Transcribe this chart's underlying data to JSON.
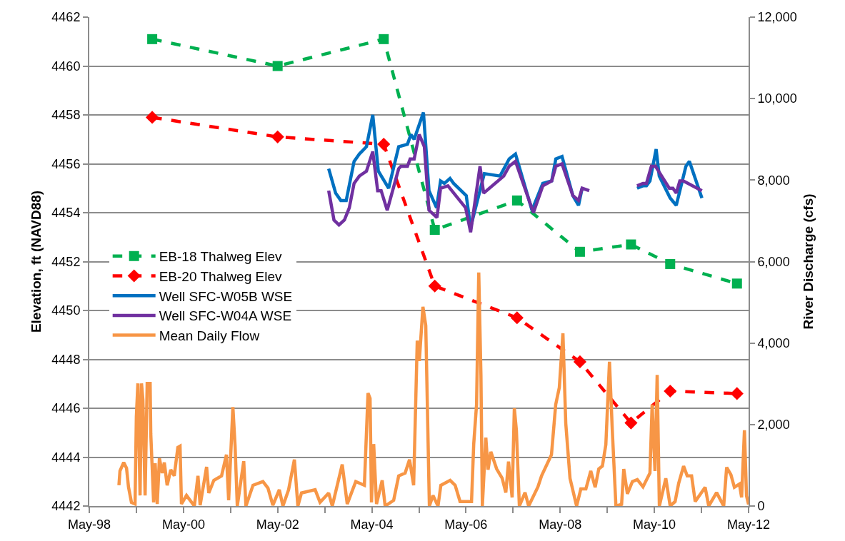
{
  "chart_data": {
    "type": "line",
    "xlabel": null,
    "ylabel": "Elevation, ft (NAVD88)",
    "y2label": "River Discharge (cfs)",
    "xlim": [
      "1998-05-01",
      "2012-05-01"
    ],
    "xticks": [
      {
        "value": "1998-05-01",
        "label": "May-98"
      },
      {
        "value": "1999-05-01",
        "label": null
      },
      {
        "value": "2000-05-01",
        "label": "May-00"
      },
      {
        "value": "2001-05-01",
        "label": null
      },
      {
        "value": "2002-05-01",
        "label": "May-02"
      },
      {
        "value": "2003-05-01",
        "label": null
      },
      {
        "value": "2004-05-01",
        "label": "May-04"
      },
      {
        "value": "2005-05-01",
        "label": null
      },
      {
        "value": "2006-05-01",
        "label": "May-06"
      },
      {
        "value": "2007-05-01",
        "label": null
      },
      {
        "value": "2008-05-01",
        "label": "May-08"
      },
      {
        "value": "2009-05-01",
        "label": null
      },
      {
        "value": "2010-05-01",
        "label": "May-10"
      },
      {
        "value": "2011-05-01",
        "label": null
      },
      {
        "value": "2012-05-01",
        "label": "May-12"
      }
    ],
    "ylim": [
      4442,
      4462
    ],
    "yticks": [
      4442,
      4444,
      4446,
      4448,
      4450,
      4452,
      4454,
      4456,
      4458,
      4460,
      4462
    ],
    "y2lim": [
      0,
      12000
    ],
    "y2ticks": [
      0,
      {
        "value": 2000,
        "label": "2,000"
      },
      {
        "value": 4000,
        "label": "4,000"
      },
      {
        "value": 6000,
        "label": "6,000"
      },
      {
        "value": 8000,
        "label": "8,000"
      },
      {
        "value": 10000,
        "label": "10,000"
      },
      {
        "value": 12000,
        "label": "12,000"
      }
    ],
    "grid": "y",
    "legend": "left",
    "series": [
      {
        "name": "EB-18 Thalweg Elev",
        "type": "line",
        "color": "#00b050",
        "marker": "square",
        "line_style": "dashed",
        "x": [
          "1999-09-01",
          "2002-05-01",
          "2004-08-01",
          "2005-09-01",
          "2007-06-01",
          "2008-10-01",
          "2009-11-01",
          "2010-09-01",
          "2012-02-01"
        ],
        "values": [
          4461.1,
          4460.0,
          4461.1,
          4453.3,
          4454.5,
          4452.4,
          4452.7,
          4451.9,
          4451.1
        ]
      },
      {
        "name": "EB-20 Thalweg Elev",
        "type": "line",
        "color": "#ff0000",
        "marker": "diamond",
        "line_style": "dashed",
        "x": [
          "1999-09-01",
          "2002-05-01",
          "2004-08-01",
          "2005-09-01",
          "2007-06-01",
          "2008-10-01",
          "2009-11-01",
          "2010-09-01",
          "2012-02-01"
        ],
        "values": [
          4457.9,
          4457.1,
          4456.8,
          4451.0,
          4449.7,
          4447.9,
          4445.4,
          4446.7,
          4446.6
        ]
      },
      {
        "name": "Well SFC-W05B WSE",
        "type": "line",
        "color": "#0070c0",
        "marker": "none",
        "line_style": "solid",
        "x": [
          "2003-06-01",
          "2003-07-25",
          "2003-09-03",
          "2003-10-15",
          "2003-12-15",
          "2004-01-25",
          "2004-03-20",
          "2004-05-08",
          "2004-06-20",
          "2004-09-08",
          "2004-11-25",
          "2005-02-01",
          "2005-02-28",
          "2005-03-25",
          "2005-06-05",
          "2005-07-18",
          "2005-09-15",
          "2005-10-16",
          "2005-11-14",
          "2005-12-28",
          "2006-01-25",
          "2006-05-03",
          "2006-06-06",
          "2006-09-20",
          "2007-01-20",
          "2007-04-01",
          "2007-05-20",
          "2007-09-25",
          "2007-12-18",
          "2008-02-25",
          "2008-03-28",
          "2008-05-15",
          "2008-08-07",
          "2008-09-20",
          "2008-10-18",
          "2009-06-01",
          "2009-12-18",
          "2010-02-02",
          "2010-03-01",
          "2010-03-28",
          "2010-05-15",
          "2010-06-08",
          "2010-09-01",
          "2010-10-18",
          "2011-01-01",
          "2011-01-28",
          "2011-05-05"
        ],
        "values": [
          4455.8,
          4454.8,
          4454.5,
          4454.5,
          4456.1,
          4456.4,
          4456.7,
          4458.0,
          4455.7,
          4455.0,
          4456.7,
          4456.8,
          4457.2,
          4457.0,
          4458.1,
          4454.9,
          4454.2,
          4455.3,
          4455.2,
          4455.4,
          4455.2,
          4454.7,
          4453.4,
          4455.6,
          4455.5,
          4456.2,
          4456.4,
          4454.1,
          4455.2,
          4455.3,
          4456.2,
          4456.3,
          4454.7,
          4454.3,
          4455.0,
          null,
          4455.0,
          4455.1,
          4455.1,
          4455.3,
          4456.6,
          4455.5,
          4454.6,
          4454.3,
          4455.9,
          4456.1,
          4454.6
        ]
      },
      {
        "name": "Well SFC-W04A WSE",
        "type": "line",
        "color": "#7030a0",
        "marker": "none",
        "line_style": "solid",
        "x": [
          "2003-06-01",
          "2003-07-12",
          "2003-08-20",
          "2003-10-01",
          "2003-11-08",
          "2003-12-15",
          "2004-01-25",
          "2004-03-20",
          "2004-05-08",
          "2004-06-15",
          "2004-07-12",
          "2004-08-28",
          "2004-11-25",
          "2004-12-12",
          "2005-02-01",
          "2005-02-22",
          "2005-03-25",
          "2005-05-03",
          "2005-06-12",
          "2005-07-18",
          "2005-09-18",
          "2005-10-16",
          "2005-12-12",
          "2006-04-28",
          "2006-06-06",
          "2006-08-18",
          "2006-09-15",
          "2007-02-18",
          "2007-04-01",
          "2007-05-20",
          "2007-10-06",
          "2007-12-18",
          "2008-02-25",
          "2008-03-28",
          "2008-05-15",
          "2008-08-07",
          "2008-09-20",
          "2008-10-18",
          "2008-12-12",
          "2009-06-01",
          "2009-12-18",
          "2010-02-02",
          "2010-03-01",
          "2010-04-08",
          "2010-05-10",
          "2010-08-25",
          "2010-09-22",
          "2010-10-18",
          "2010-11-15",
          "2010-12-12",
          "2011-05-05"
        ],
        "values": [
          4454.9,
          4453.7,
          4453.5,
          4453.7,
          4454.2,
          4455.2,
          4455.5,
          4455.7,
          4456.5,
          4454.9,
          4454.9,
          4454.1,
          4455.8,
          4455.9,
          4455.9,
          4456.2,
          4456.2,
          4457.2,
          4456.7,
          4454.1,
          4453.8,
          4455.0,
          4455.1,
          4454.2,
          4453.2,
          4455.9,
          4454.8,
          4455.5,
          4455.9,
          4456.1,
          4454.0,
          4455.1,
          4455.3,
          4455.9,
          4456.0,
          4454.7,
          4454.5,
          4455.0,
          4454.9,
          null,
          4455.1,
          4455.2,
          4455.2,
          4455.9,
          4455.9,
          4455.0,
          4455.0,
          4454.8,
          4455.3,
          4455.3,
          4454.9
        ]
      },
      {
        "name": "Mean Daily Flow",
        "type": "line",
        "color": "#f79646",
        "marker": "none",
        "line_style": "solid",
        "axis": "y2",
        "x": [
          "1998-12-17",
          "1998-12-25",
          "1999-01-23",
          "1999-02-14",
          "1999-03-01",
          "1999-03-24",
          "1999-04-21",
          "1999-05-01",
          "1999-05-13",
          "1999-05-30",
          "1999-06-10",
          "1999-06-21",
          "1999-07-08",
          "1999-07-24",
          "1999-08-16",
          "1999-08-21",
          "1999-09-12",
          "1999-09-24",
          "1999-10-10",
          "1999-10-27",
          "1999-11-18",
          "1999-12-04",
          "1999-12-26",
          "2000-01-23",
          "2000-02-19",
          "2000-03-18",
          "2000-04-04",
          "2000-04-15",
          "2000-05-24",
          "2000-07-24",
          "2000-08-21",
          "2000-09-07",
          "2000-10-27",
          "2000-11-13",
          "2000-12-22",
          "2001-02-20",
          "2001-03-30",
          "2001-04-16",
          "2001-05-19",
          "2001-06-05",
          "2001-06-22",
          "2001-08-11",
          "2001-08-28",
          "2001-10-22",
          "2002-01-07",
          "2002-02-15",
          "2002-03-25",
          "2002-05-14",
          "2002-06-11",
          "2002-07-25",
          "2002-09-08",
          "2002-10-05",
          "2002-11-02",
          "2003-02-16",
          "2003-03-26",
          "2003-06-01",
          "2003-06-29",
          "2003-09-14",
          "2003-10-23",
          "2003-12-28",
          "2004-03-04",
          "2004-04-01",
          "2004-04-17",
          "2004-04-28",
          "2004-05-15",
          "2004-06-06",
          "2004-07-20",
          "2004-08-12",
          "2004-10-17",
          "2004-11-25",
          "2005-01-14",
          "2005-02-17",
          "2005-03-21",
          "2005-04-18",
          "2005-05-04",
          "2005-06-01",
          "2005-06-23",
          "2005-07-21",
          "2005-08-18",
          "2005-09-26",
          "2005-10-18",
          "2005-12-29",
          "2006-02-06",
          "2006-03-16",
          "2006-06-13",
          "2006-06-30",
          "2006-07-22",
          "2006-08-08",
          "2006-08-25",
          "2006-09-05",
          "2006-10-02",
          "2006-10-19",
          "2006-11-10",
          "2006-12-25",
          "2007-02-06",
          "2007-03-06",
          "2007-03-27",
          "2007-04-24",
          "2007-05-11",
          "2007-05-27",
          "2007-06-19",
          "2007-08-02",
          "2007-08-30",
          "2007-11-10",
          "2007-12-08",
          "2008-02-23",
          "2008-03-27",
          "2008-04-24",
          "2008-05-22",
          "2008-06-13",
          "2008-07-16",
          "2008-09-05",
          "2008-10-08",
          "2008-11-16",
          "2008-12-24",
          "2009-01-27",
          "2009-02-24",
          "2009-03-24",
          "2009-04-20",
          "2009-05-18",
          "2009-06-09",
          "2009-07-07",
          "2009-08-20",
          "2009-09-06",
          "2009-10-04",
          "2009-11-12",
          "2009-12-20",
          "2010-02-02",
          "2010-03-28",
          "2010-04-14",
          "2010-05-06",
          "2010-05-23",
          "2010-06-09",
          "2010-07-29",
          "2010-09-01",
          "2010-10-09",
          "2010-11-06",
          "2010-12-14",
          "2011-01-11",
          "2011-02-14",
          "2011-03-14",
          "2011-05-30",
          "2011-06-27",
          "2011-08-27",
          "2011-10-21",
          "2011-11-13",
          "2011-12-16",
          "2012-01-12",
          "2012-02-20",
          "2012-03-08",
          "2012-03-30",
          "2012-04-15",
          "2012-05-01"
        ],
        "values": [
          510,
          860,
          1070,
          930,
          470,
          90,
          50,
          2190,
          3010,
          260,
          3010,
          2610,
          260,
          3010,
          3010,
          1770,
          90,
          1050,
          50,
          1170,
          810,
          1070,
          510,
          890,
          740,
          1440,
          1470,
          50,
          260,
          0,
          740,
          20,
          960,
          320,
          630,
          740,
          1260,
          140,
          2430,
          1470,
          0,
          1100,
          0,
          510,
          600,
          440,
          20,
          400,
          0,
          400,
          1140,
          0,
          320,
          400,
          90,
          320,
          0,
          1020,
          50,
          600,
          510,
          2770,
          2640,
          90,
          1520,
          50,
          630,
          0,
          140,
          740,
          810,
          1140,
          510,
          4060,
          3560,
          4890,
          4430,
          0,
          260,
          0,
          510,
          630,
          510,
          110,
          110,
          1520,
          2490,
          5730,
          3220,
          0,
          1680,
          890,
          1330,
          910,
          680,
          330,
          1090,
          210,
          2400,
          1860,
          0,
          330,
          0,
          470,
          740,
          1260,
          2490,
          2910,
          4240,
          2030,
          680,
          0,
          420,
          420,
          860,
          460,
          910,
          980,
          1510,
          3540,
          1860,
          0,
          40,
          910,
          300,
          600,
          650,
          470,
          810,
          2490,
          860,
          3220,
          0,
          680,
          0,
          110,
          560,
          980,
          740,
          740,
          110,
          460,
          0,
          330,
          0,
          950,
          770,
          460,
          540,
          210,
          1860,
          250,
          40
        ]
      }
    ]
  }
}
